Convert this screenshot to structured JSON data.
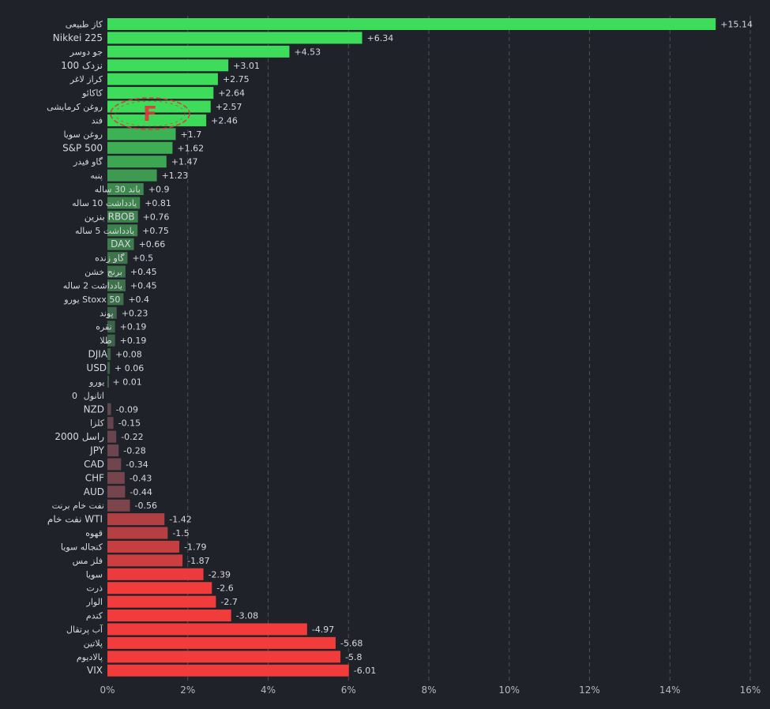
{
  "chart_data": {
    "type": "bar",
    "orientation": "horizontal",
    "grid": true,
    "xlim": [
      0,
      16
    ],
    "x_ticks": [
      {
        "value": 0,
        "label": "0%"
      },
      {
        "value": 2,
        "label": "2%"
      },
      {
        "value": 4,
        "label": "4%"
      },
      {
        "value": 6,
        "label": "6%"
      },
      {
        "value": 8,
        "label": "8%"
      },
      {
        "value": 10,
        "label": "10%"
      },
      {
        "value": 12,
        "label": "12%"
      },
      {
        "value": 14,
        "label": "14%"
      },
      {
        "value": 16,
        "label": "16%"
      }
    ],
    "categories": [
      "کاز طبیعی",
      "Nikkei 225",
      "جو دوسر",
      "نزدک 100",
      "کراز لاغر",
      "کاکائو",
      "روغن کرمایشی",
      "فند",
      "روغن سویا",
      "S&P 500",
      "گاو فیدر",
      "پنبه",
      "باند 30 ساله",
      "یادداشت 10 ساله",
      "بنزین RBOB",
      "یادداشت 5 ساله",
      "DAX",
      "گاو زنده",
      "برنج خشن",
      "یادداشت 2 ساله",
      "یورو Stoxx 50",
      "پوند",
      "نقره",
      "طلا",
      "DJIA",
      "USD",
      "یورو",
      "اتانول",
      "NZD",
      "کلزا",
      "راسل 2000",
      "JPY",
      "CAD",
      "CHF",
      "AUD",
      "نفت خام برنت",
      "نفت خام WTI",
      "قهوه",
      "کنجاله سویا",
      "فلز مس",
      "سویا",
      "ذرت",
      "الوار",
      "کندم",
      "آب پرتقال",
      "پلاتین",
      "پالادیوم",
      "VIX"
    ],
    "values": [
      15.14,
      6.34,
      4.53,
      3.01,
      2.75,
      2.64,
      2.57,
      2.46,
      1.7,
      1.62,
      1.47,
      1.23,
      0.9,
      0.81,
      0.76,
      0.75,
      0.66,
      0.5,
      0.45,
      0.45,
      0.4,
      0.23,
      0.19,
      0.19,
      0.08,
      0.06,
      0.01,
      0,
      -0.09,
      -0.15,
      -0.22,
      -0.28,
      -0.34,
      -0.43,
      -0.44,
      -0.56,
      -1.42,
      -1.5,
      -1.79,
      -1.87,
      -2.39,
      -2.6,
      -2.7,
      -3.08,
      -4.97,
      -5.68,
      -5.8,
      -6.01
    ],
    "value_labels": [
      "+15.14",
      "+6.34",
      "+4.53",
      "+3.01",
      "+2.75",
      "+2.64",
      "+2.57",
      "+2.46",
      "+1.7",
      "+1.62",
      "+1.47",
      "+1.23",
      "+0.9",
      "+0.81",
      "+0.76",
      "+0.75",
      "+0.66",
      "+0.5",
      "+0.45",
      "+0.45",
      "+0.4",
      "+0.23",
      "+0.19",
      "+0.19",
      "+0.08",
      "+ 0.06",
      "+ 0.01",
      "0",
      "-0.09",
      "-0.15",
      "-0.22",
      "-0.28",
      "-0.34",
      "-0.43",
      "-0.44",
      "-0.56",
      "-1.42",
      "-1.5",
      "-1.79",
      "-1.87",
      "-2.39",
      "-2.6",
      "-2.7",
      "-3.08",
      "-4.97",
      "-5.68",
      "-5.8",
      "-6.01"
    ],
    "colors": {
      "background": "#1f2329",
      "grid": "#4b5159",
      "positive_strong": "#3ddc5a",
      "positive_weak": "#3d5a47",
      "negative_weak": "#5b4650",
      "negative_strong": "#f23b3b",
      "text": "#d6d9de",
      "axis_text": "#b4b8bf"
    },
    "logo": {
      "letter": "F",
      "color": "#e8323c"
    }
  }
}
